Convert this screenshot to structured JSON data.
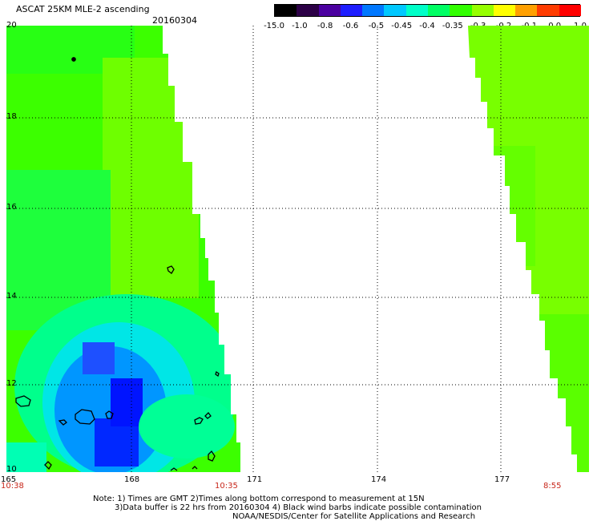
{
  "header": {
    "title": "ASCAT 25KM MLE-2 ascending",
    "date": "20160304"
  },
  "colorbar": {
    "labels": [
      "-15.0",
      "-1.0",
      "-0.8",
      "-0.6",
      "-0.5",
      "-0.45",
      "-0.4",
      "-0.35",
      "-0.3",
      "-0.2",
      "-0.1",
      "0.0",
      "1.0"
    ],
    "colors": [
      "#000000",
      "#2c0046",
      "#4b00a0",
      "#1e1eff",
      "#0078ff",
      "#00c8ff",
      "#00ffc8",
      "#00ff64",
      "#32ff00",
      "#96ff00",
      "#ffff00",
      "#ffa000",
      "#ff3c00",
      "#ff0000"
    ]
  },
  "map": {
    "lat_labels": [
      "20",
      "18",
      "16",
      "14",
      "12",
      "10"
    ],
    "lon_labels": [
      "165",
      "168",
      "171",
      "174",
      "177"
    ],
    "time_labels": [
      "10:38",
      "10:35",
      "8:55"
    ],
    "colors": {
      "green": "#32ff00",
      "yellow_green": "#78ff00",
      "sea_green": "#00ff78",
      "cyan": "#00dcff",
      "light_blue": "#0096ff",
      "blue": "#0032ff",
      "dark_blue": "#0014ff"
    }
  },
  "notes": {
    "line1": "Note: 1) Times are GMT 2)Times along bottom correspond to measurement at 15N",
    "line2": "3)Data buffer is 22 hrs from 20160304 4) Black wind barbs indicate possible contamination",
    "line3": "NOAA/NESDIS/Center for Satellite Applications and Research"
  }
}
